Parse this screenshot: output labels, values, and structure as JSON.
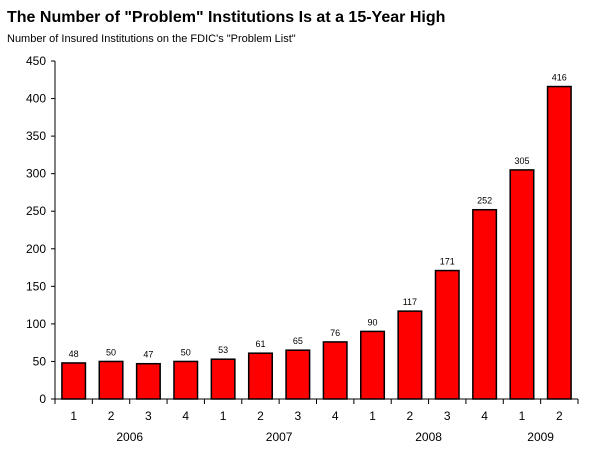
{
  "chart_data": {
    "type": "bar",
    "title": "The Number of \"Problem\" Institutions Is at a 15-Year High",
    "subtitle": "Number of Insured Institutions on the FDIC's \"Problem List\"",
    "xlabel": "",
    "ylabel": "",
    "ylim": [
      0,
      450
    ],
    "yticks": [
      0,
      50,
      100,
      150,
      200,
      250,
      300,
      350,
      400,
      450
    ],
    "categories": [
      "1",
      "2",
      "3",
      "4",
      "1",
      "2",
      "3",
      "4",
      "1",
      "2",
      "3",
      "4",
      "1",
      "2"
    ],
    "year_groups": [
      {
        "label": "2006",
        "count": 4
      },
      {
        "label": "2007",
        "count": 4
      },
      {
        "label": "2008",
        "count": 4
      },
      {
        "label": "2009",
        "count": 2
      }
    ],
    "values": [
      48,
      50,
      47,
      50,
      53,
      61,
      65,
      76,
      90,
      117,
      171,
      252,
      305,
      416
    ],
    "bar_color": "#ff0000",
    "bar_edge_color": "#000000",
    "grid": false,
    "legend": "none",
    "data_labels": true
  }
}
